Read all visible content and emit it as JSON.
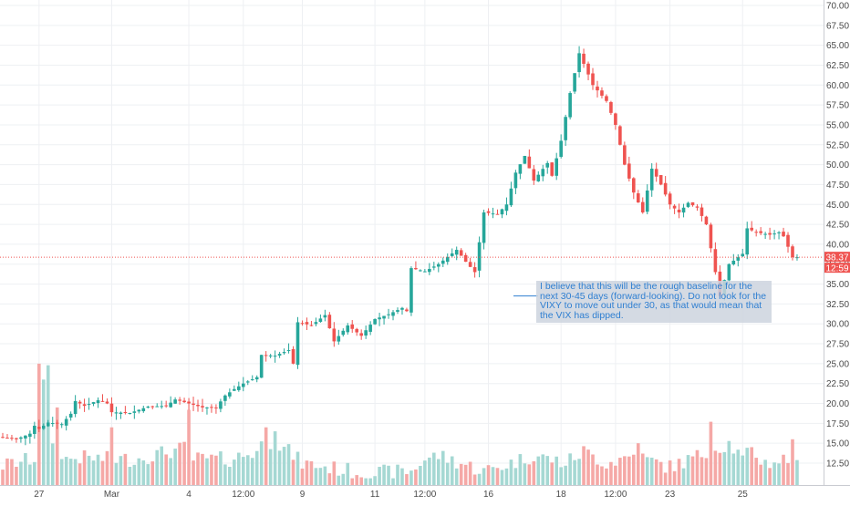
{
  "chart_data": {
    "type": "candlestick",
    "y_axis": {
      "side": "right",
      "ylim": [
        10.0,
        70.0
      ],
      "ticks": [
        "12.50",
        "15.00",
        "17.50",
        "20.00",
        "22.50",
        "25.00",
        "27.50",
        "30.00",
        "32.50",
        "35.00",
        "37.50",
        "40.00",
        "42.50",
        "45.00",
        "47.50",
        "50.00",
        "52.50",
        "55.00",
        "57.50",
        "60.00",
        "62.50",
        "65.00",
        "67.50",
        "70.00"
      ]
    },
    "x_axis": {
      "tick_labels": [
        "27",
        "Mar",
        "4",
        "12:00",
        "9",
        "11",
        "12:00",
        "16",
        "18",
        "12:00",
        "23",
        "25"
      ],
      "tick_bar_index": [
        8,
        24,
        41,
        53,
        66,
        82,
        93,
        107,
        123,
        135,
        147,
        163
      ]
    },
    "grid": true,
    "colors": {
      "up": "#26a69a",
      "down": "#ef5350",
      "volume_up": "#a5d8d3",
      "volume_down": "#f5a8a6",
      "last_price": "#ef5350",
      "annotation_text": "#2f7fd1"
    },
    "last_price": {
      "value": "38.37",
      "countdown": "12:59"
    },
    "price_path": [
      [
        0,
        15.8
      ],
      [
        4,
        15.5
      ],
      [
        7,
        16.2
      ],
      [
        8,
        17.2
      ],
      [
        9,
        16.8
      ],
      [
        11,
        17.6
      ],
      [
        14,
        17.4
      ],
      [
        16,
        18.7
      ],
      [
        17,
        20.3
      ],
      [
        19,
        19.7
      ],
      [
        22,
        20.4
      ],
      [
        24,
        20.0
      ],
      [
        25,
        18.9
      ],
      [
        29,
        18.8
      ],
      [
        33,
        19.6
      ],
      [
        37,
        19.7
      ],
      [
        39,
        20.5
      ],
      [
        42,
        20.0
      ],
      [
        45,
        19.5
      ],
      [
        48,
        19.5
      ],
      [
        50,
        21.0
      ],
      [
        52,
        21.8
      ],
      [
        54,
        22.5
      ],
      [
        57,
        23.3
      ],
      [
        58,
        26.1
      ],
      [
        61,
        26.0
      ],
      [
        64,
        26.7
      ],
      [
        65,
        25.0
      ],
      [
        66,
        30.2
      ],
      [
        69,
        29.8
      ],
      [
        72,
        31.1
      ],
      [
        74,
        27.8
      ],
      [
        77,
        29.8
      ],
      [
        80,
        28.5
      ],
      [
        83,
        30.6
      ],
      [
        86,
        31.2
      ],
      [
        89,
        32.0
      ],
      [
        90,
        31.6
      ],
      [
        91,
        37.0
      ],
      [
        94,
        36.6
      ],
      [
        97,
        37.5
      ],
      [
        101,
        39.3
      ],
      [
        103,
        37.8
      ],
      [
        105,
        36.5
      ],
      [
        107,
        44.0
      ],
      [
        110,
        43.8
      ],
      [
        112,
        45.0
      ],
      [
        114,
        49.0
      ],
      [
        116,
        51.1
      ],
      [
        118,
        48.0
      ],
      [
        121,
        50.2
      ],
      [
        122,
        48.6
      ],
      [
        124,
        53.0
      ],
      [
        126,
        59.0
      ],
      [
        128,
        64.0
      ],
      [
        131,
        60.0
      ],
      [
        134,
        58.0
      ],
      [
        136,
        55.0
      ],
      [
        138,
        50.0
      ],
      [
        140,
        46.5
      ],
      [
        142,
        44.0
      ],
      [
        144,
        49.5
      ],
      [
        146,
        47.5
      ],
      [
        148,
        45.0
      ],
      [
        150,
        44.0
      ],
      [
        152,
        45.2
      ],
      [
        154,
        44.6
      ],
      [
        156,
        42.5
      ],
      [
        159,
        33.5
      ],
      [
        161,
        37.5
      ],
      [
        164,
        38.8
      ],
      [
        165,
        42.0
      ],
      [
        167,
        41.5
      ],
      [
        170,
        41.2
      ],
      [
        172,
        41.5
      ],
      [
        173,
        41.0
      ],
      [
        175,
        38.37
      ]
    ],
    "volume_path": [
      [
        0,
        12.2
      ],
      [
        8,
        13.2
      ],
      [
        9,
        16.0
      ],
      [
        11,
        15.5
      ],
      [
        14,
        13.0
      ],
      [
        17,
        13.2
      ],
      [
        24,
        13.0
      ],
      [
        29,
        13.0
      ],
      [
        33,
        13.5
      ],
      [
        41,
        14.5
      ],
      [
        42,
        13.0
      ],
      [
        50,
        13.0
      ],
      [
        56,
        14.0
      ],
      [
        58,
        15.5
      ],
      [
        63,
        14.0
      ],
      [
        66,
        12.5
      ],
      [
        80,
        11.2
      ],
      [
        90,
        11.5
      ],
      [
        93,
        13.0
      ],
      [
        96,
        13.5
      ],
      [
        101,
        12.5
      ],
      [
        106,
        11.5
      ],
      [
        112,
        12.5
      ],
      [
        117,
        13.5
      ],
      [
        124,
        12.5
      ],
      [
        128,
        14.0
      ],
      [
        133,
        12.5
      ],
      [
        139,
        13.5
      ],
      [
        147,
        12.0
      ],
      [
        156,
        14.0
      ],
      [
        160,
        15.0
      ],
      [
        163,
        13.0
      ],
      [
        165,
        14.0
      ],
      [
        168,
        12.5
      ],
      [
        172,
        13.0
      ],
      [
        175,
        12.0
      ]
    ],
    "volume_spikes": [
      [
        8,
        25.0
      ],
      [
        9,
        23.0
      ],
      [
        10,
        24.8
      ],
      [
        12,
        19.5
      ],
      [
        24,
        17.0
      ],
      [
        41,
        19.2
      ],
      [
        58,
        17.0
      ],
      [
        60,
        16.5
      ],
      [
        140,
        15.0
      ],
      [
        156,
        17.7
      ],
      [
        174,
        15.5
      ]
    ],
    "annotation": {
      "text": "I believe that this will be the rough baseline for the next 30-45 days (forward-looking). Do not look for the VIXY to move out under 30, as that would mean that the VIX has dipped.",
      "level": 33.5
    }
  }
}
